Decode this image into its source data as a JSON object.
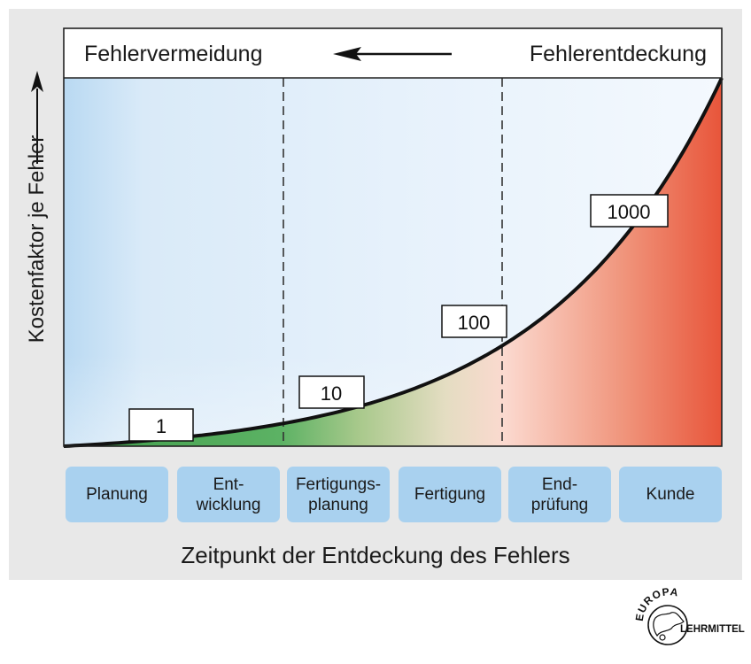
{
  "header": {
    "left_label": "Fehlervermeidung",
    "right_label": "Fehlerentdeckung"
  },
  "axes": {
    "y_label": "Kostenfaktor je Fehler",
    "x_label": "Zeitpunkt der Entdeckung des Fehlers"
  },
  "cost_markers": [
    "1",
    "10",
    "100",
    "1000"
  ],
  "stages": [
    {
      "label": "Planung"
    },
    {
      "label": "Ent-\nwicklung"
    },
    {
      "label": "Fertigungs-\nplanung"
    },
    {
      "label": "Fertigung"
    },
    {
      "label": "End-\nprüfung"
    },
    {
      "label": "Kunde"
    }
  ],
  "logo": {
    "top_text": "EUROPA",
    "bottom_text": "LEHRMITTEL"
  },
  "colors": {
    "panel": "#e8e8e8",
    "chart_bg_edge": "#b9d9f2",
    "stage_box": "#a9d1ef",
    "green": "#4fae5a",
    "red": "#e8573a"
  }
}
